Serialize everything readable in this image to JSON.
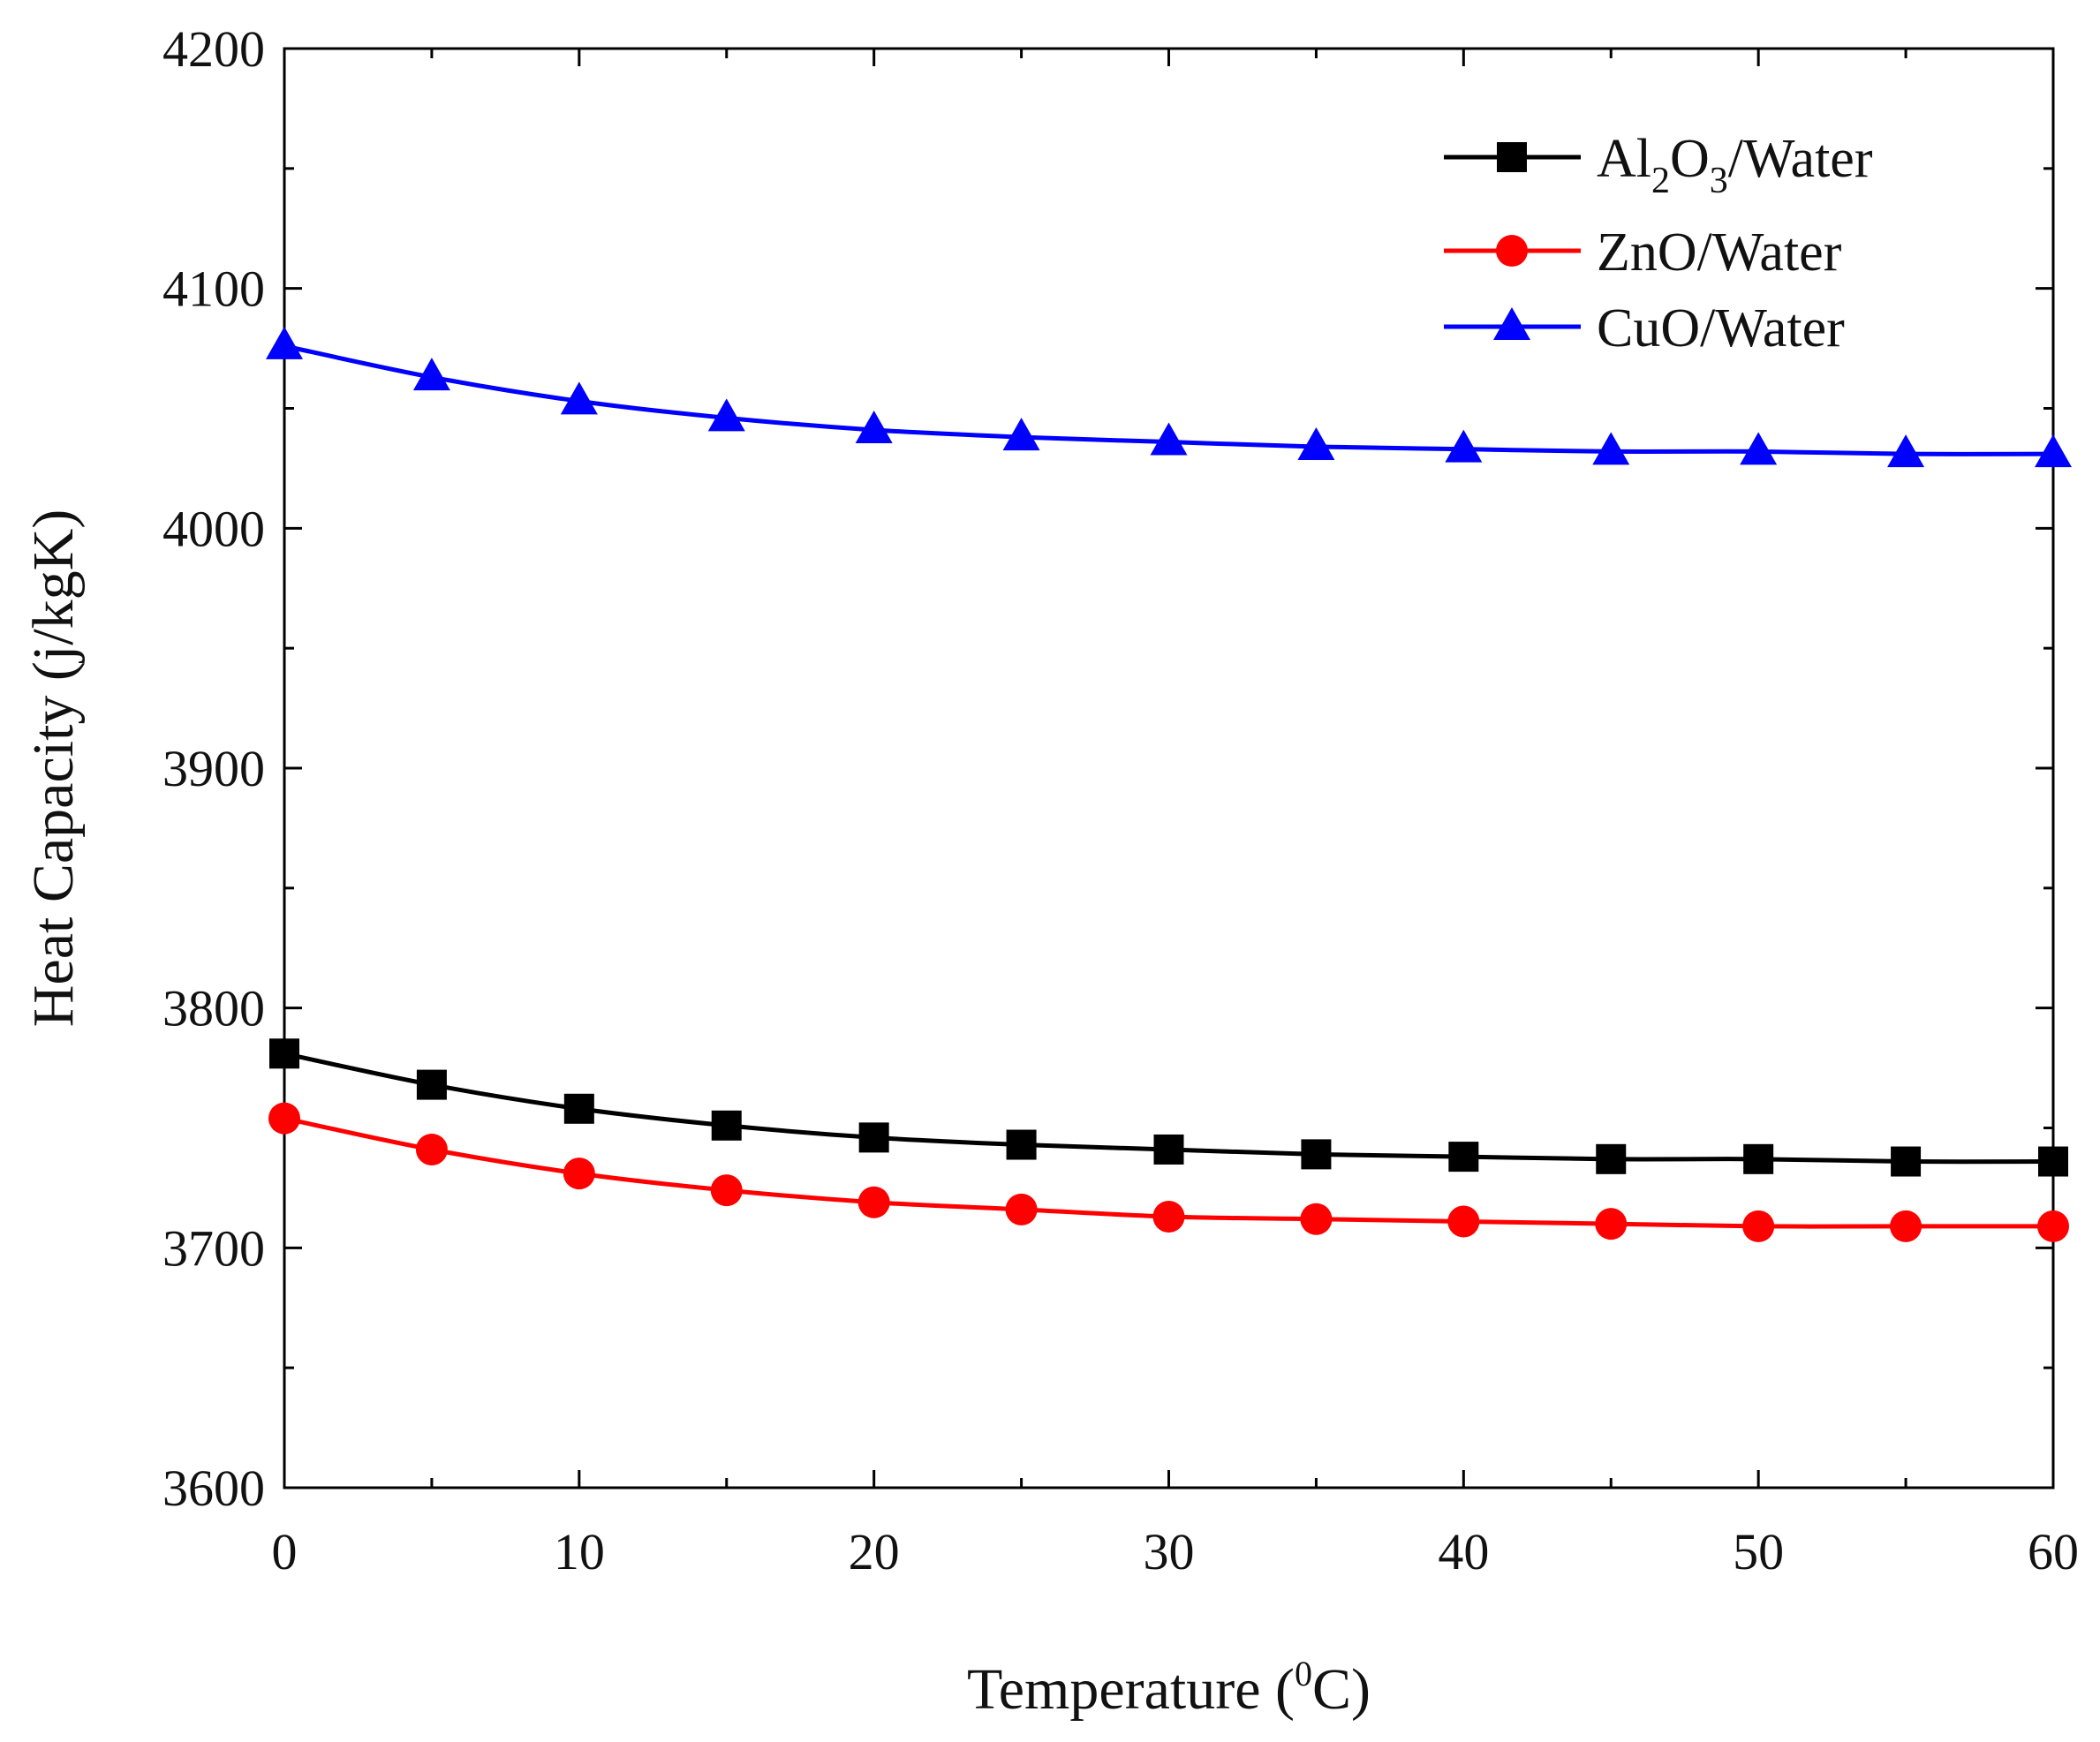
{
  "chart_data": {
    "type": "line",
    "title": "",
    "xlabel": "Temperature (",
    "xlabel_superscript": "0",
    "xlabel_suffix": "C)",
    "ylabel": "Heat Capacity (j/kgK)",
    "xlim": [
      0,
      60
    ],
    "ylim": [
      3600,
      4200
    ],
    "x_ticks": [
      "0",
      "10",
      "20",
      "30",
      "40",
      "50",
      "60"
    ],
    "y_ticks": [
      "3600",
      "3700",
      "3800",
      "3900",
      "4000",
      "4100",
      "4200"
    ],
    "grid": false,
    "legend_position": "top-right",
    "x": [
      0,
      5,
      10,
      15,
      20,
      25,
      30,
      35,
      40,
      45,
      50,
      55,
      60
    ],
    "series": [
      {
        "name": "Al2O3/Water",
        "legend_parts": [
          {
            "text": "Al",
            "sub": false
          },
          {
            "text": "2",
            "sub": true
          },
          {
            "text": "O",
            "sub": false
          },
          {
            "text": "3",
            "sub": true
          },
          {
            "text": "/Water",
            "sub": false
          }
        ],
        "color": "#000000",
        "marker": "square",
        "values": [
          3781,
          3768,
          3758,
          3751,
          3746,
          3743,
          3741,
          3739,
          3738,
          3737,
          3737,
          3736,
          3736
        ]
      },
      {
        "name": "ZnO/Water",
        "legend_parts": [
          {
            "text": "ZnO/Water",
            "sub": false
          }
        ],
        "color": "#ff0000",
        "marker": "circle",
        "values": [
          3754,
          3741,
          3731,
          3724,
          3719,
          3716,
          3713,
          3712,
          3711,
          3710,
          3709,
          3709,
          3709
        ]
      },
      {
        "name": "CuO/Water",
        "legend_parts": [
          {
            "text": "CuO/Water",
            "sub": false
          }
        ],
        "color": "#0000ff",
        "marker": "triangle",
        "values": [
          4076,
          4063,
          4053,
          4046,
          4041,
          4038,
          4036,
          4034,
          4033,
          4032,
          4032,
          4031,
          4031
        ]
      }
    ]
  }
}
